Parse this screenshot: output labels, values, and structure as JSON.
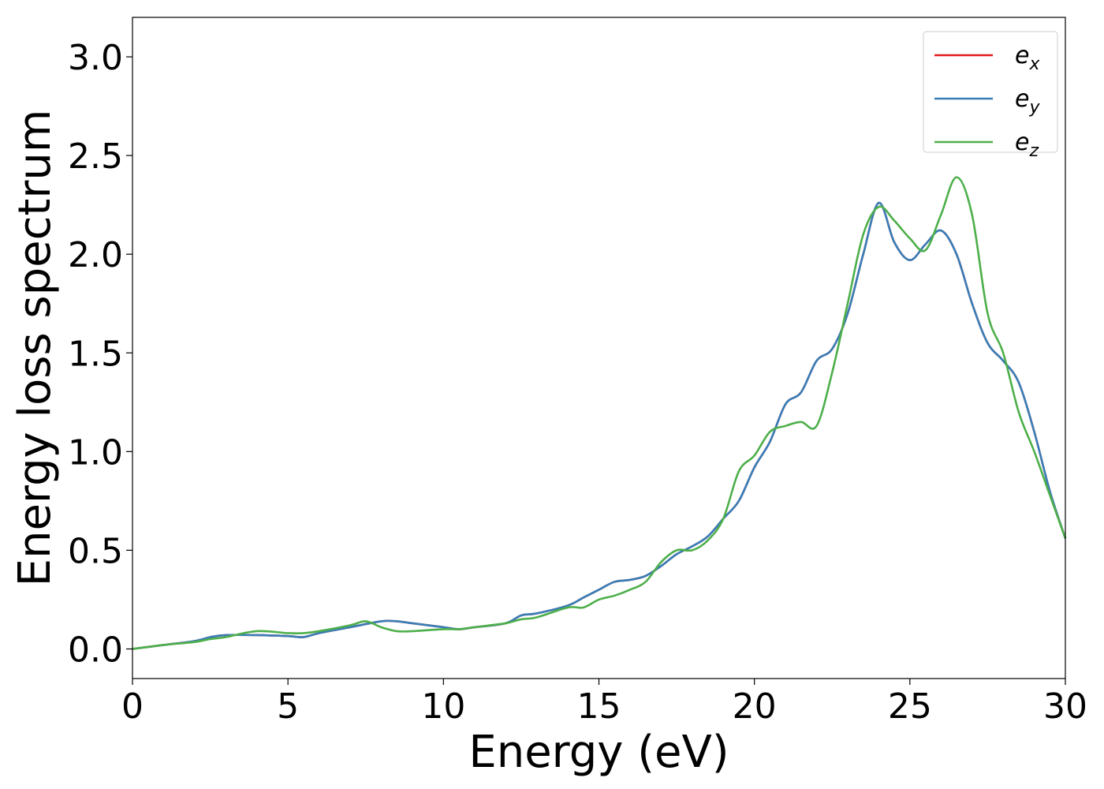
{
  "chart_data": {
    "type": "line",
    "title": "",
    "xlabel": "Energy (eV)",
    "ylabel": "Energy loss spectrum",
    "xlim": [
      0,
      30
    ],
    "ylim": [
      -0.15,
      3.2
    ],
    "xticks": [
      "0",
      "5",
      "10",
      "15",
      "20",
      "25",
      "30"
    ],
    "yticks": [
      "0.0",
      "0.5",
      "1.0",
      "1.5",
      "2.0",
      "2.5",
      "3.0"
    ],
    "grid": false,
    "legend_position": "top-right",
    "series": [
      {
        "name": "e_x",
        "label_base": "e",
        "label_sub": "x",
        "color": "#e41a1c",
        "x": [
          0,
          1,
          2,
          2.5,
          3,
          4,
          5,
          5.5,
          6,
          7,
          8,
          8.5,
          9,
          10,
          10.5,
          11,
          12,
          12.5,
          13,
          14,
          14.5,
          15,
          15.5,
          16,
          16.5,
          17,
          17.5,
          18,
          18.5,
          19,
          19.5,
          20,
          20.5,
          21,
          21.5,
          22,
          22.5,
          23,
          23.5,
          24,
          24.5,
          25,
          25.5,
          26,
          26.5,
          27,
          27.5,
          28,
          28.5,
          29,
          29.5,
          30
        ],
        "y": [
          0.0,
          0.02,
          0.04,
          0.06,
          0.07,
          0.07,
          0.065,
          0.06,
          0.08,
          0.11,
          0.14,
          0.14,
          0.13,
          0.11,
          0.1,
          0.11,
          0.13,
          0.17,
          0.18,
          0.22,
          0.26,
          0.3,
          0.34,
          0.35,
          0.37,
          0.42,
          0.48,
          0.52,
          0.57,
          0.66,
          0.75,
          0.92,
          1.05,
          1.24,
          1.3,
          1.46,
          1.52,
          1.7,
          2.0,
          2.26,
          2.06,
          1.97,
          2.05,
          2.12,
          2.0,
          1.75,
          1.55,
          1.46,
          1.35,
          1.1,
          0.8,
          0.56
        ]
      },
      {
        "name": "e_y",
        "label_base": "e",
        "label_sub": "y",
        "color": "#377eb8",
        "x": [
          0,
          1,
          2,
          2.5,
          3,
          4,
          5,
          5.5,
          6,
          7,
          8,
          8.5,
          9,
          10,
          10.5,
          11,
          12,
          12.5,
          13,
          14,
          14.5,
          15,
          15.5,
          16,
          16.5,
          17,
          17.5,
          18,
          18.5,
          19,
          19.5,
          20,
          20.5,
          21,
          21.5,
          22,
          22.5,
          23,
          23.5,
          24,
          24.5,
          25,
          25.5,
          26,
          26.5,
          27,
          27.5,
          28,
          28.5,
          29,
          29.5,
          30
        ],
        "y": [
          0.0,
          0.02,
          0.04,
          0.06,
          0.07,
          0.07,
          0.065,
          0.06,
          0.08,
          0.11,
          0.14,
          0.14,
          0.13,
          0.11,
          0.1,
          0.11,
          0.13,
          0.17,
          0.18,
          0.22,
          0.26,
          0.3,
          0.34,
          0.35,
          0.37,
          0.42,
          0.48,
          0.52,
          0.57,
          0.66,
          0.75,
          0.92,
          1.05,
          1.24,
          1.3,
          1.46,
          1.52,
          1.7,
          2.0,
          2.26,
          2.06,
          1.97,
          2.05,
          2.12,
          2.0,
          1.75,
          1.55,
          1.46,
          1.35,
          1.1,
          0.8,
          0.56
        ]
      },
      {
        "name": "e_z",
        "label_base": "e",
        "label_sub": "z",
        "color": "#4daf4a",
        "x": [
          0,
          1,
          2,
          2.5,
          3,
          4,
          5,
          5.5,
          6,
          7,
          7.5,
          8,
          8.5,
          9,
          10,
          10.5,
          11,
          12,
          12.5,
          13,
          14,
          14.5,
          15,
          15.5,
          16,
          16.5,
          17,
          17.5,
          18,
          18.5,
          19,
          19.5,
          20,
          20.5,
          21,
          21.5,
          22,
          22.5,
          23,
          23.5,
          24,
          24.5,
          25,
          25.5,
          26,
          26.5,
          27,
          27.5,
          28,
          28.5,
          29,
          29.5,
          30
        ],
        "y": [
          0.0,
          0.02,
          0.035,
          0.05,
          0.06,
          0.09,
          0.08,
          0.08,
          0.09,
          0.12,
          0.14,
          0.11,
          0.09,
          0.09,
          0.1,
          0.1,
          0.11,
          0.13,
          0.15,
          0.16,
          0.21,
          0.21,
          0.25,
          0.27,
          0.3,
          0.34,
          0.44,
          0.5,
          0.5,
          0.55,
          0.66,
          0.9,
          0.98,
          1.1,
          1.13,
          1.15,
          1.13,
          1.4,
          1.75,
          2.1,
          2.24,
          2.17,
          2.08,
          2.02,
          2.2,
          2.39,
          2.2,
          1.7,
          1.5,
          1.2,
          1.0,
          0.78,
          0.56
        ]
      }
    ]
  }
}
